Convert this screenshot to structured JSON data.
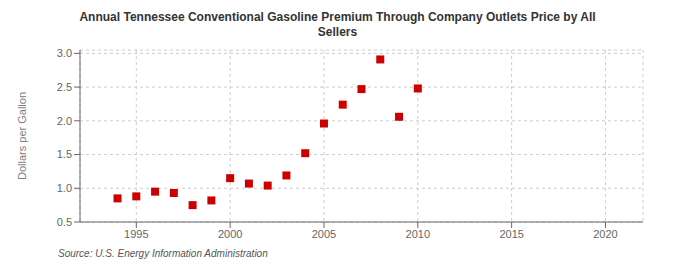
{
  "chart_data": {
    "type": "scatter",
    "title": "Annual Tennessee Conventional Gasoline Premium Through Company Outlets Price by All\nSellers",
    "ylabel": "Dollars per Gallon",
    "source": "Source: U.S. Energy Information Administration",
    "x": [
      1994,
      1995,
      1996,
      1997,
      1998,
      1999,
      2000,
      2001,
      2002,
      2003,
      2004,
      2005,
      2006,
      2007,
      2008,
      2009,
      2010
    ],
    "values": [
      0.85,
      0.88,
      0.95,
      0.93,
      0.75,
      0.82,
      1.15,
      1.07,
      1.04,
      1.19,
      1.52,
      1.96,
      2.24,
      2.47,
      2.91,
      2.06,
      2.48
    ],
    "color": "#cc0000",
    "marker": "square",
    "xlim": [
      1992,
      2022
    ],
    "ylim": [
      0.5,
      3.05
    ],
    "xticks": [
      1995,
      2000,
      2005,
      2010,
      2015,
      2020
    ],
    "yticks": [
      0.5,
      {
        "value": 1.0,
        "label": "1.0"
      },
      1.5,
      {
        "value": 2.0,
        "label": "2.0"
      },
      2.5,
      {
        "value": 3.0,
        "label": "3.0"
      }
    ],
    "grid": true
  }
}
